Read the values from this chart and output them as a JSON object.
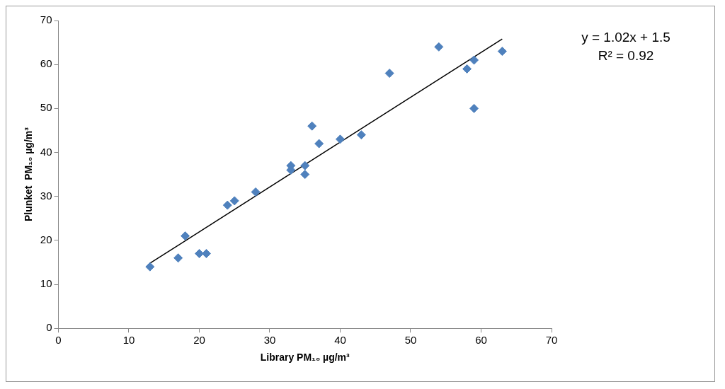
{
  "chart_data": {
    "type": "scatter",
    "xlabel": "Library PM₁₀ µg/m³",
    "ylabel": "Plunket  PM₁₀ µg/m³",
    "xlim": [
      0,
      70
    ],
    "ylim": [
      0,
      70
    ],
    "xticks": [
      0,
      10,
      20,
      30,
      40,
      50,
      60,
      70
    ],
    "yticks": [
      0,
      10,
      20,
      30,
      40,
      50,
      60,
      70
    ],
    "grid": false,
    "legend": false,
    "annotations": [
      "y = 1.02x + 1.5",
      "R² = 0.92"
    ],
    "series": [
      {
        "type": "scatter",
        "marker": "diamond",
        "color": "#4f81bd",
        "x": [
          13,
          17,
          18,
          20,
          21,
          24,
          25,
          28,
          33,
          33,
          35,
          35,
          36,
          37,
          40,
          43,
          47,
          54,
          58,
          59,
          59,
          63
        ],
        "values": [
          14,
          16,
          21,
          17,
          17,
          28,
          29,
          31,
          37,
          36,
          37,
          35,
          46,
          42,
          43,
          44,
          58,
          64,
          59,
          61,
          50,
          63
        ]
      },
      {
        "type": "line",
        "marker": "none",
        "color": "#000000",
        "x": [
          13,
          63
        ],
        "values": [
          14.8,
          65.8
        ]
      }
    ]
  }
}
